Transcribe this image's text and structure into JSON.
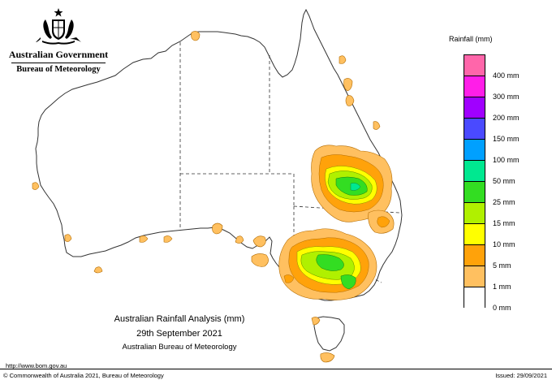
{
  "government": {
    "line1": "Australian Government",
    "line2": "Bureau of Meteorology",
    "crest_icon": "coat-of-arms-icon"
  },
  "map": {
    "caption_title": "Australian Rainfall Analysis (mm)",
    "caption_date": "29th September 2021",
    "caption_source": "Australian Bureau of Meteorology"
  },
  "legend": {
    "title": "Rainfall (mm)",
    "classes": [
      {
        "label": "",
        "color": "#ff66aa"
      },
      {
        "label": "400 mm",
        "color": "#ff1ee8"
      },
      {
        "label": "300 mm",
        "color": "#a000ff"
      },
      {
        "label": "200 mm",
        "color": "#4a4aff"
      },
      {
        "label": "150 mm",
        "color": "#00a0ff"
      },
      {
        "label": "100 mm",
        "color": "#00e890"
      },
      {
        "label": "50 mm",
        "color": "#33dd22"
      },
      {
        "label": "25 mm",
        "color": "#b0f000"
      },
      {
        "label": "15 mm",
        "color": "#ffff00"
      },
      {
        "label": "10 mm",
        "color": "#ffa20a"
      },
      {
        "label": "5 mm",
        "color": "#ffc060"
      },
      {
        "label": "1 mm",
        "color": "#ffffff"
      },
      {
        "label": "0 mm",
        "color": ""
      }
    ]
  },
  "footer": {
    "url": "http://www.bom.gov.au",
    "copyright": "© Commonwealth of Australia 2021, Bureau of Meteorology",
    "issued": "Issued: 29/09/2021"
  }
}
